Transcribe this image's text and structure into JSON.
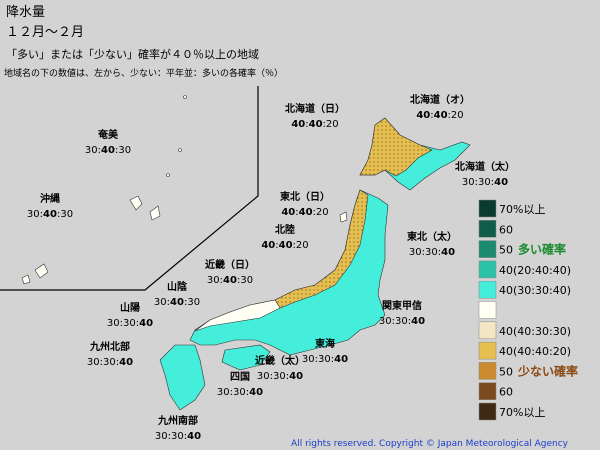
{
  "header": {
    "title": "降水量",
    "period": "１２月～２月",
    "subtitle": "「多い」または「少ない」確率が４０％以上の地域",
    "note": "地域名の下の数値は、左から、少ない：平年並：多いの各確率（％）"
  },
  "separator": ":",
  "regions": [
    {
      "name": "北海道（日）",
      "probabilities": [
        40,
        40,
        20
      ]
    },
    {
      "name": "北海道（オ）",
      "probabilities": [
        40,
        40,
        20
      ]
    },
    {
      "name": "北海道（太）",
      "probabilities": [
        30,
        30,
        40
      ]
    },
    {
      "name": "奄美",
      "probabilities": [
        30,
        40,
        30
      ]
    },
    {
      "name": "沖縄",
      "probabilities": [
        30,
        40,
        30
      ]
    },
    {
      "name": "東北（日）",
      "probabilities": [
        40,
        40,
        20
      ]
    },
    {
      "name": "北陸",
      "probabilities": [
        40,
        40,
        20
      ]
    },
    {
      "name": "東北（太）",
      "probabilities": [
        30,
        30,
        40
      ]
    },
    {
      "name": "近畿（日）",
      "probabilities": [
        30,
        40,
        30
      ]
    },
    {
      "name": "山陰",
      "probabilities": [
        30,
        40,
        30
      ]
    },
    {
      "name": "関東甲信",
      "probabilities": [
        30,
        30,
        40
      ]
    },
    {
      "name": "山陽",
      "probabilities": [
        30,
        30,
        40
      ]
    },
    {
      "name": "九州北部",
      "probabilities": [
        30,
        30,
        40
      ]
    },
    {
      "name": "東海",
      "probabilities": [
        30,
        30,
        40
      ]
    },
    {
      "name": "近畿（太）",
      "probabilities": [
        30,
        30,
        40
      ]
    },
    {
      "name": "四国",
      "probabilities": [
        30,
        30,
        40
      ]
    },
    {
      "name": "九州南部",
      "probabilities": [
        30,
        30,
        40
      ]
    }
  ],
  "legend": {
    "items": [
      {
        "label": "70%以上",
        "color": "#0b3b2c"
      },
      {
        "label": "60",
        "color": "#0f5e4a"
      },
      {
        "label": "50",
        "note": "多い確率",
        "color": "#1a8a70"
      },
      {
        "label": "40(20:40:40)",
        "color": "#2cc2aa"
      },
      {
        "label": "40(30:30:40)",
        "color": "#44eedb"
      },
      {
        "color": "#fffff4"
      },
      {
        "label": "40(40:30:30)",
        "color": "#f3e6c2"
      },
      {
        "label": "40(40:40:20)",
        "color": "#e5c050"
      },
      {
        "label": "50",
        "note": "少ない確率",
        "color": "#cc8a2e"
      },
      {
        "label": "60",
        "color": "#7c4a1c"
      },
      {
        "label": "70%以上",
        "color": "#3e2a12"
      }
    ]
  },
  "footer": "All rights reserved. Copyright © Japan Meteorological Agency"
}
